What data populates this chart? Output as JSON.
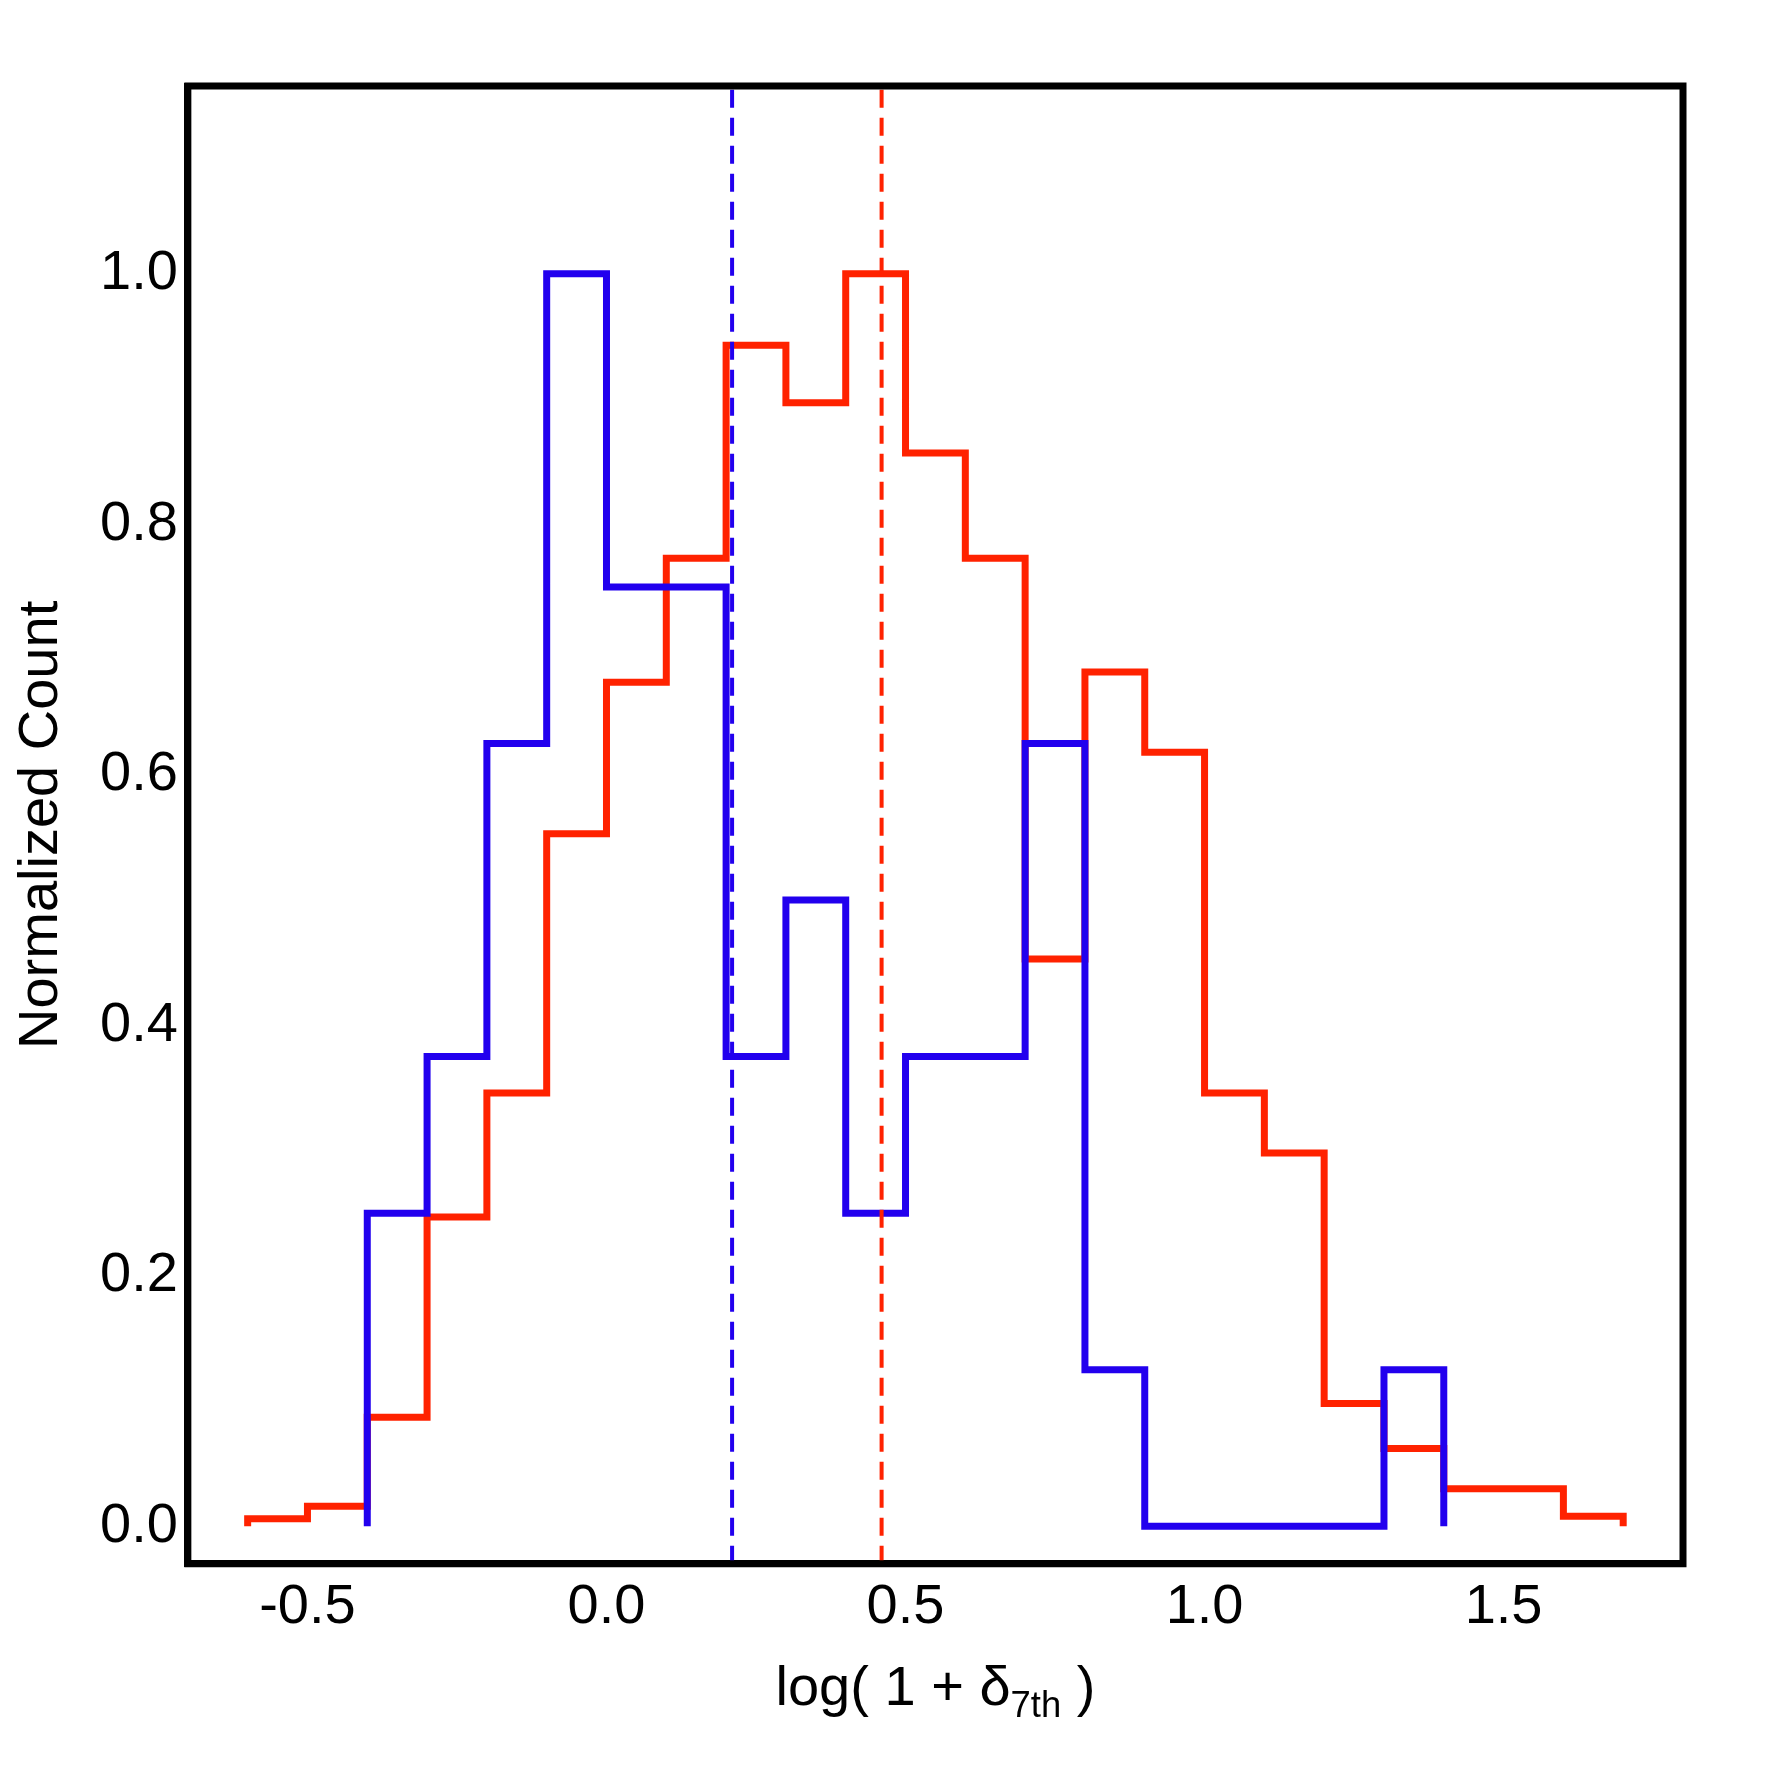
{
  "chart_data": {
    "type": "histogram",
    "xlabel": "log( 1 + δ$_{7th}$ )",
    "ylabel": "Normalized Count",
    "xlim": [
      -0.7,
      1.8
    ],
    "ylim": [
      -0.03,
      1.15
    ],
    "xticks": [
      {
        "value": -0.5,
        "label": "-0.5"
      },
      {
        "value": 0,
        "label": "0.0"
      },
      {
        "value": 0.5,
        "label": "0.5"
      },
      {
        "value": 1,
        "label": "1.0"
      },
      {
        "value": 1.5,
        "label": "1.5"
      }
    ],
    "yticks": [
      {
        "value": 0,
        "label": "0.0"
      },
      {
        "value": 0.2,
        "label": "0.2"
      },
      {
        "value": 0.4,
        "label": "0.4"
      },
      {
        "value": 0.6,
        "label": "0.6"
      },
      {
        "value": 0.8,
        "label": "0.8"
      },
      {
        "value": 1,
        "label": "1.0"
      }
    ],
    "grid": false,
    "legend": false,
    "bins": [
      -0.6,
      -0.5,
      -0.4,
      -0.3,
      -0.2,
      -0.1,
      0.0,
      0.1,
      0.2,
      0.3,
      0.4,
      0.5,
      0.6,
      0.7,
      0.8,
      0.9,
      1.0,
      1.1,
      1.2,
      1.3,
      1.4,
      1.5,
      1.6,
      1.7
    ],
    "series": [
      {
        "color": "#2200ee",
        "bins": [
          -0.4,
          -0.3,
          -0.2,
          -0.1,
          0.0,
          0.1,
          0.2,
          0.3,
          0.4,
          0.5,
          0.6,
          0.7,
          0.8,
          0.9,
          1.0,
          1.1,
          1.2,
          1.3,
          1.4
        ],
        "values": [
          0.25,
          0.375,
          0.625,
          1.0,
          0.75,
          0.75,
          0.375,
          0.5,
          0.25,
          0.375,
          0.375,
          0.625,
          0.125,
          0,
          0,
          0,
          0,
          0.125
        ]
      },
      {
        "color": "#ff2200",
        "values": [
          0.006,
          0.016,
          0.087,
          0.247,
          0.346,
          0.553,
          0.674,
          0.773,
          0.943,
          0.897,
          1.0,
          0.857,
          0.773,
          0.453,
          0.682,
          0.618,
          0.346,
          0.298,
          0.098,
          0.062,
          0.03,
          0.03,
          0.008
        ]
      }
    ],
    "ref_lines": [
      {
        "axis": "x",
        "value": 0.21,
        "color": "#2200ee",
        "line_style": "dashed"
      },
      {
        "axis": "x",
        "value": 0.46,
        "color": "#ff2200",
        "line_style": "dashed"
      }
    ]
  }
}
